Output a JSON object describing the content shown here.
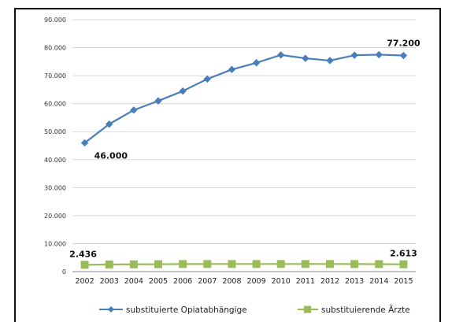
{
  "chart_data": {
    "type": "line",
    "title": "",
    "xlabel": "",
    "ylabel": "",
    "ylim": [
      0,
      90000
    ],
    "yticks": [
      "0",
      "10.000",
      "20.000",
      "30.000",
      "40.000",
      "50.000",
      "60.000",
      "70.000",
      "80.000",
      "90.000"
    ],
    "x": [
      "2002",
      "2003",
      "2004",
      "2005",
      "2006",
      "2007",
      "2008",
      "2009",
      "2010",
      "2011",
      "2012",
      "2013",
      "2014",
      "2015"
    ],
    "grid": true,
    "legend_position": "bottom",
    "series": [
      {
        "name": "substituierte Opiatabhängige",
        "color": "#4a7ebb",
        "marker": "diamond",
        "values": [
          46000,
          52700,
          57700,
          61000,
          64500,
          68800,
          72200,
          74600,
          77400,
          76200,
          75400,
          77300,
          77500,
          77200
        ]
      },
      {
        "name": "substituierende Ärzte",
        "color": "#9bbb59",
        "marker": "square",
        "values": [
          2436,
          2550,
          2600,
          2650,
          2700,
          2720,
          2720,
          2720,
          2730,
          2720,
          2720,
          2700,
          2680,
          2613
        ]
      }
    ],
    "annotations": [
      {
        "series": 0,
        "index": 0,
        "text": "46.000"
      },
      {
        "series": 0,
        "index": 13,
        "text": "77.200"
      },
      {
        "series": 1,
        "index": 0,
        "text": "2.436"
      },
      {
        "series": 1,
        "index": 13,
        "text": "2.613"
      }
    ]
  }
}
